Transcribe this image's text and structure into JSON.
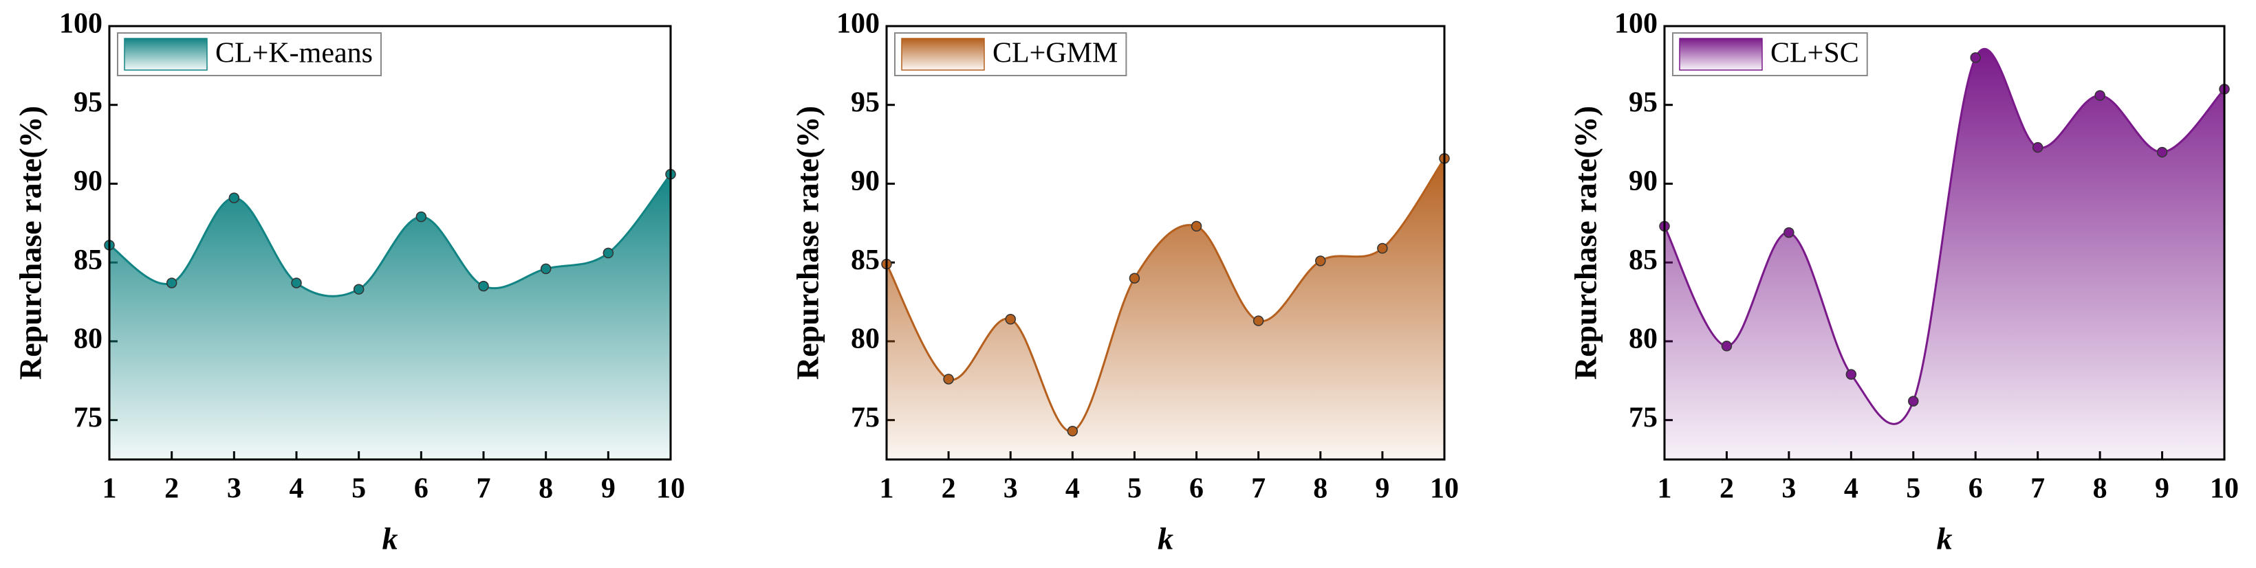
{
  "chart_data": [
    {
      "type": "area",
      "xlabel": "k",
      "ylabel": "Repurchase rate(%)",
      "x": [
        1,
        2,
        3,
        4,
        5,
        6,
        7,
        8,
        9,
        10
      ],
      "series": [
        {
          "name": "CL+K-means",
          "color": "#138484",
          "values": [
            86.1,
            83.7,
            89.1,
            83.7,
            83.3,
            87.9,
            83.5,
            84.6,
            85.6,
            90.6
          ]
        }
      ],
      "xlim": [
        1,
        10
      ],
      "xticks": [
        1,
        2,
        3,
        4,
        5,
        6,
        7,
        8,
        9,
        10
      ],
      "ylim": [
        72.5,
        100
      ],
      "yticks": [
        75,
        80,
        85,
        90,
        95,
        100
      ],
      "legend": "upper left"
    },
    {
      "type": "area",
      "xlabel": "k",
      "ylabel": "Repurchase rate(%)",
      "x": [
        1,
        2,
        3,
        4,
        5,
        6,
        7,
        8,
        9,
        10
      ],
      "series": [
        {
          "name": "CL+GMM",
          "color": "#b5601e",
          "values": [
            84.9,
            77.6,
            81.4,
            74.3,
            84.0,
            87.3,
            81.3,
            85.1,
            85.9,
            91.6
          ]
        }
      ],
      "xlim": [
        1,
        10
      ],
      "xticks": [
        1,
        2,
        3,
        4,
        5,
        6,
        7,
        8,
        9,
        10
      ],
      "ylim": [
        72.5,
        100
      ],
      "yticks": [
        75,
        80,
        85,
        90,
        95,
        100
      ],
      "legend": "upper left"
    },
    {
      "type": "area",
      "xlabel": "k",
      "ylabel": "Repurchase rate(%)",
      "x": [
        1,
        2,
        3,
        4,
        5,
        6,
        7,
        8,
        9,
        10
      ],
      "series": [
        {
          "name": "CL+SC",
          "color": "#7a1a8a",
          "values": [
            87.3,
            79.7,
            86.9,
            77.9,
            76.2,
            98.0,
            92.3,
            95.6,
            92.0,
            96.0
          ]
        }
      ],
      "xlim": [
        1,
        10
      ],
      "xticks": [
        1,
        2,
        3,
        4,
        5,
        6,
        7,
        8,
        9,
        10
      ],
      "ylim": [
        72.5,
        100
      ],
      "yticks": [
        75,
        80,
        85,
        90,
        95,
        100
      ],
      "legend": "upper left"
    }
  ]
}
